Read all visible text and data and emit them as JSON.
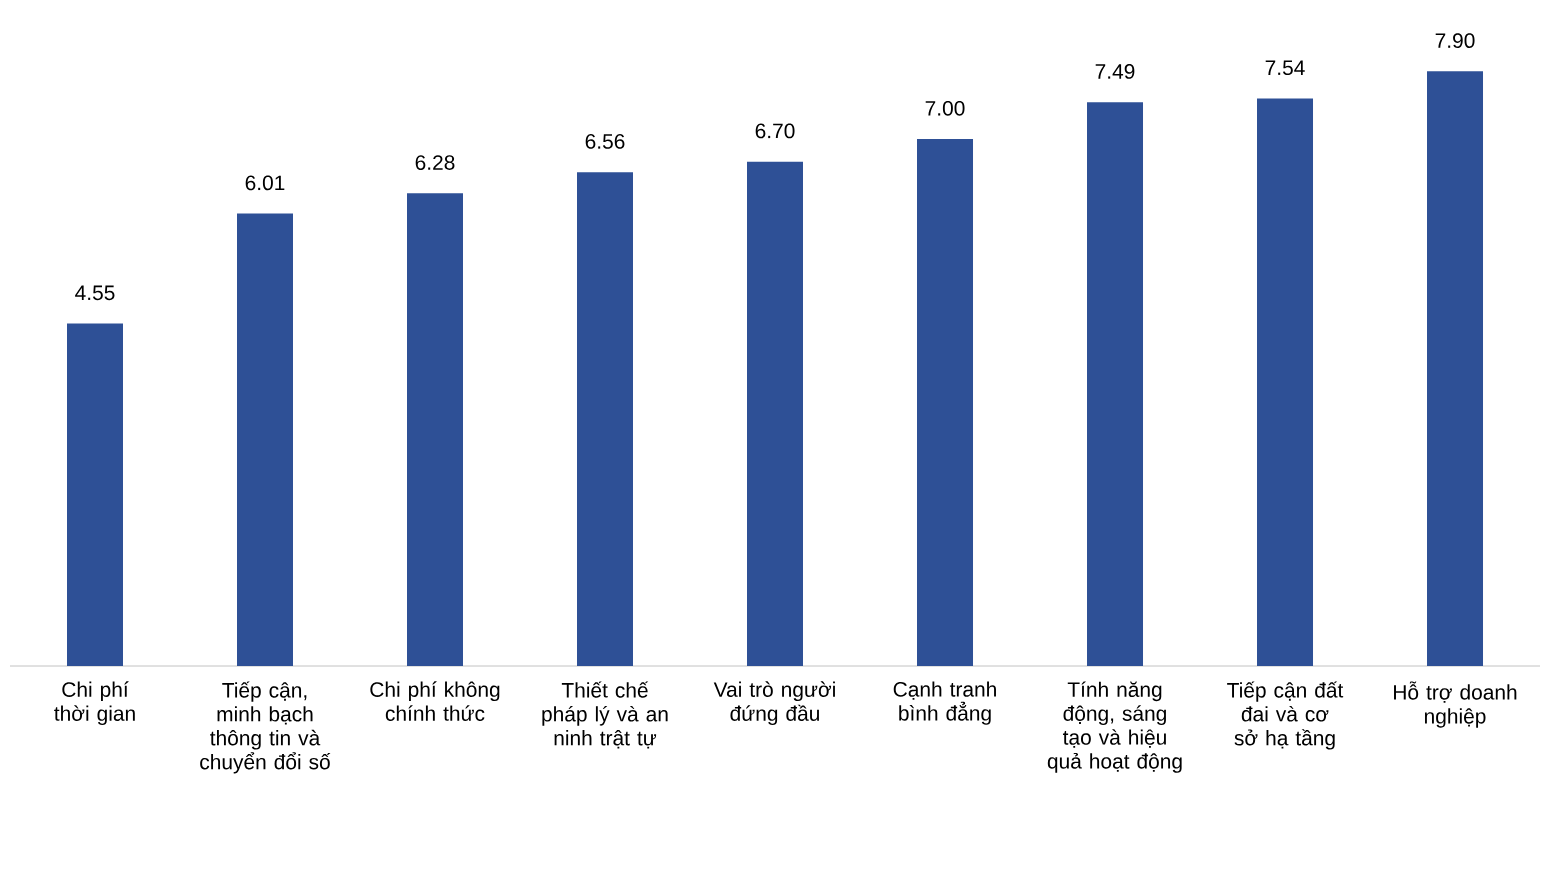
{
  "chart_data": {
    "type": "bar",
    "categories": [
      "Chi phí thời gian",
      "Tiếp cận, minh bạch thông tin và chuyển đổi số",
      "Chi phí không chính thức",
      "Thiết chế pháp lý và an ninh trật tự",
      "Vai trò người đứng đầu",
      "Cạnh tranh bình đẳng",
      "Tính năng động, sáng tạo và hiệu quả hoạt động",
      "Tiếp cận đất đai và cơ sở hạ tầng",
      "Hỗ trợ doanh nghiệp"
    ],
    "values": [
      4.55,
      6.01,
      6.28,
      6.56,
      6.7,
      7.0,
      7.49,
      7.54,
      7.9
    ],
    "value_labels": [
      "4.55",
      "6.01",
      "6.28",
      "6.56",
      "6.70",
      "7.00",
      "7.49",
      "7.54",
      "7.90"
    ],
    "color": "#2e5096"
  }
}
